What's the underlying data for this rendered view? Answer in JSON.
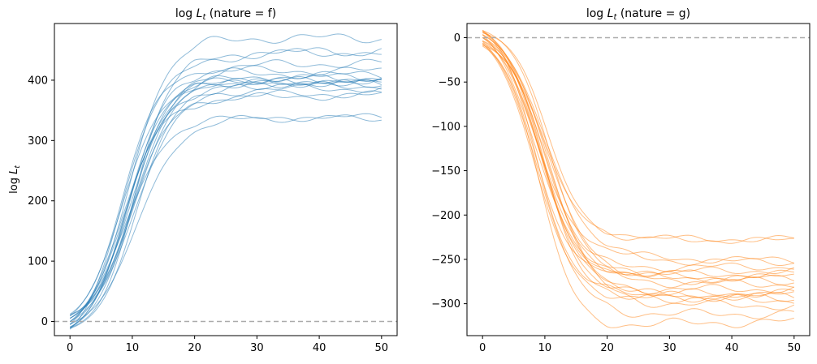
{
  "chart_data": [
    {
      "type": "line",
      "title": "log L_t (nature = f)",
      "title_text": "log ",
      "title_var": "L",
      "title_sub": "t",
      "title_rest": " (nature = f)",
      "xlabel": "",
      "ylabel": "log L_t",
      "ylabel_text": "log ",
      "ylabel_var": "L",
      "ylabel_sub": "t",
      "xlim": [
        -2.5,
        52.5
      ],
      "ylim": [
        -23.5,
        494
      ],
      "xticks": [
        0,
        10,
        20,
        30,
        40,
        50
      ],
      "yticks": [
        0,
        100,
        200,
        300,
        400
      ],
      "reference_line": 0,
      "color": "#1f77b4",
      "grid": false,
      "legend": "none",
      "series_count": 19,
      "plateaus": [
        470,
        448,
        447,
        428,
        415,
        408,
        404,
        402,
        400,
        398,
        397,
        395,
        393,
        390,
        386,
        378,
        375,
        339,
        336
      ]
    },
    {
      "type": "line",
      "title": "log L_t (nature = g)",
      "title_text": "log ",
      "title_var": "L",
      "title_sub": "t",
      "title_rest": " (nature = g)",
      "xlabel": "",
      "ylabel": "",
      "xlim": [
        -2.5,
        52.5
      ],
      "ylim": [
        -336,
        16
      ],
      "xticks": [
        0,
        10,
        20,
        30,
        40,
        50
      ],
      "yticks": [
        0,
        -50,
        -100,
        -150,
        -200,
        -250,
        -300
      ],
      "reference_line": 0,
      "color": "#ff7f0e",
      "grid": false,
      "legend": "none",
      "series_count": 20,
      "plateaus": [
        -227,
        -229,
        -251,
        -253,
        -258,
        -262,
        -266,
        -270,
        -272,
        -275,
        -278,
        -283,
        -287,
        -290,
        -292,
        -294,
        -296,
        -302,
        -311,
        -320
      ]
    }
  ]
}
